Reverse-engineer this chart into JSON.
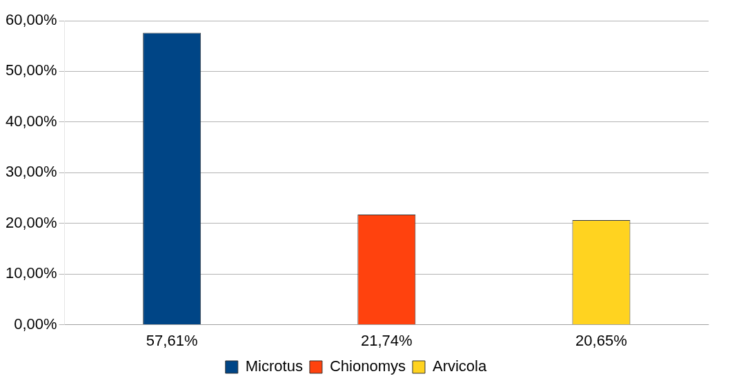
{
  "chart_data": {
    "type": "bar",
    "categories": [
      "57,61%",
      "21,74%",
      "20,65%"
    ],
    "series": [
      {
        "name": "Microtus",
        "color": "#004586",
        "values": [
          57.61,
          null,
          null
        ]
      },
      {
        "name": "Chionomys",
        "color": "#ff420e",
        "values": [
          null,
          21.74,
          null
        ]
      },
      {
        "name": "Arvicola",
        "color": "#ffd320",
        "values": [
          null,
          null,
          20.65
        ]
      }
    ],
    "ylim": [
      0,
      60
    ],
    "yticks": [
      {
        "value": 0,
        "label": "0,00%"
      },
      {
        "value": 10,
        "label": "10,00%"
      },
      {
        "value": 20,
        "label": "20,00%"
      },
      {
        "value": 30,
        "label": "30,00%"
      },
      {
        "value": 40,
        "label": "40,00%"
      },
      {
        "value": 50,
        "label": "50,00%"
      },
      {
        "value": 60,
        "label": "60,00%"
      }
    ],
    "grid": "y",
    "legend": "bottom"
  }
}
